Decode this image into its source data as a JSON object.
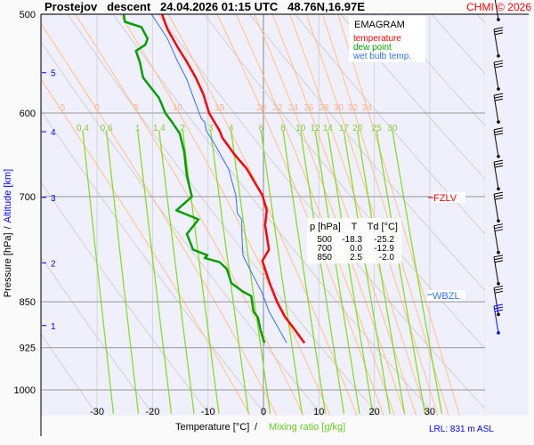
{
  "title": "Prostejov   descent   24.04.2026 01:15 UTC   48.76N,16.97E",
  "copyright": "CHMI © 2026",
  "legend": {
    "title": "EMAGRAM",
    "items": [
      {
        "label": "temperature",
        "color": "#ff0000"
      },
      {
        "label": "dew point",
        "color": "#00a000"
      },
      {
        "label": "wet bulb temp.",
        "color": "#3070ff"
      }
    ]
  },
  "table": {
    "headers": [
      "p [hPa]",
      "T",
      "Td [°C]"
    ],
    "rows": [
      [
        "500",
        "-18.3",
        "-25.2"
      ],
      [
        "700",
        "0.0",
        "-12.9"
      ],
      [
        "850",
        "2.5",
        "-2.0"
      ]
    ]
  },
  "levels": {
    "fzlv": {
      "label": "FZLV",
      "pressure": 700,
      "color": "#ff0000"
    },
    "wbzl": {
      "label": "WBZL",
      "pressure": 843,
      "color": "#3070ff"
    }
  },
  "lrl": "LRL: 831 m ASL",
  "chart_data": {
    "type": "line",
    "title": "EMAGRAM",
    "xlabel": "Temperature [°C]",
    "xlabel2": "Mixing ratio [g/kg]",
    "ylabel": "Pressure [hPa]",
    "ylabel2": "Altitude [km]",
    "xlim": [
      -40,
      40
    ],
    "ylim": [
      1049,
      500
    ],
    "x_ticks": [
      -30,
      -20,
      -10,
      0,
      10,
      20,
      30
    ],
    "p_ticks": [
      500,
      600,
      700,
      850,
      925,
      1000
    ],
    "altitude_ticks": [
      {
        "km": "5",
        "p": 557
      },
      {
        "km": "4",
        "p": 621
      },
      {
        "km": "3",
        "p": 701
      },
      {
        "km": "2",
        "p": 791
      },
      {
        "km": "1",
        "p": 888
      }
    ],
    "theta_w_labels": [
      "-5",
      "0",
      "5",
      "10",
      "15",
      "20",
      "22",
      "24",
      "26",
      "28",
      "30",
      "32",
      "34"
    ],
    "mixing_ratio_labels": [
      "0.4",
      "0.6",
      "1",
      "1.4",
      "2",
      "3",
      "4",
      "6",
      "8",
      "10",
      "12",
      "14",
      "17",
      "20",
      "25",
      "30"
    ],
    "series": [
      {
        "name": "temperature",
        "color": "#ff0000",
        "points": [
          [
            500,
            -18.3
          ],
          [
            514,
            -17.3
          ],
          [
            531,
            -15.5
          ],
          [
            546,
            -13.8
          ],
          [
            562,
            -12.2
          ],
          [
            580,
            -10.8
          ],
          [
            600,
            -9.8
          ],
          [
            620,
            -7.9
          ],
          [
            628,
            -7.4
          ],
          [
            647,
            -5.3
          ],
          [
            665,
            -3.0
          ],
          [
            685,
            -1.3
          ],
          [
            698,
            -0.2
          ],
          [
            718,
            0.6
          ],
          [
            738,
            0.3
          ],
          [
            772,
            1.0
          ],
          [
            788,
            -0.2
          ],
          [
            821,
            1.1
          ],
          [
            851,
            2.5
          ],
          [
            874,
            3.9
          ],
          [
            893,
            5.5
          ],
          [
            917,
            7.4
          ]
        ]
      },
      {
        "name": "dew point",
        "color": "#00a000",
        "points": [
          [
            500,
            -25.2
          ],
          [
            507,
            -25.0
          ],
          [
            512,
            -22.0
          ],
          [
            523,
            -20.9
          ],
          [
            529,
            -21.3
          ],
          [
            535,
            -23.0
          ],
          [
            546,
            -22.3
          ],
          [
            562,
            -21.7
          ],
          [
            571,
            -20.5
          ],
          [
            583,
            -18.9
          ],
          [
            591,
            -18.3
          ],
          [
            600,
            -17.7
          ],
          [
            610,
            -16.5
          ],
          [
            623,
            -15.1
          ],
          [
            644,
            -14.3
          ],
          [
            674,
            -13.8
          ],
          [
            700,
            -12.9
          ],
          [
            718,
            -15.7
          ],
          [
            730,
            -11.7
          ],
          [
            750,
            -13.8
          ],
          [
            772,
            -12.7
          ],
          [
            780,
            -10.1
          ],
          [
            784,
            -10.6
          ],
          [
            790,
            -7.9
          ],
          [
            800,
            -6.6
          ],
          [
            821,
            -5.8
          ],
          [
            834,
            -3.7
          ],
          [
            841,
            -2.2
          ],
          [
            865,
            -1.8
          ],
          [
            875,
            -1.0
          ],
          [
            897,
            -0.5
          ],
          [
            917,
            0.2
          ]
        ]
      },
      {
        "name": "wet bulb temp.",
        "color": "#3070ff",
        "points": [
          [
            500,
            -20.2
          ],
          [
            507,
            -19.3
          ],
          [
            523,
            -17.3
          ],
          [
            544,
            -15.6
          ],
          [
            564,
            -13.8
          ],
          [
            590,
            -12.2
          ],
          [
            606,
            -11.2
          ],
          [
            610,
            -10.6
          ],
          [
            620,
            -10.3
          ],
          [
            633,
            -9.0
          ],
          [
            665,
            -6.3
          ],
          [
            698,
            -5.0
          ],
          [
            722,
            -4.7
          ],
          [
            730,
            -3.9
          ],
          [
            750,
            -3.9
          ],
          [
            780,
            -3.7
          ],
          [
            793,
            -2.9
          ],
          [
            837,
            -0.2
          ],
          [
            865,
            1.0
          ],
          [
            917,
            4.2
          ]
        ]
      }
    ],
    "wind_barbs": [
      {
        "p": 505
      },
      {
        "p": 540
      },
      {
        "p": 574
      },
      {
        "p": 610
      },
      {
        "p": 650
      },
      {
        "p": 690
      },
      {
        "p": 732
      },
      {
        "p": 776
      },
      {
        "p": 822
      },
      {
        "p": 870
      },
      {
        "p": 900,
        "color": "#0000ff"
      }
    ]
  }
}
